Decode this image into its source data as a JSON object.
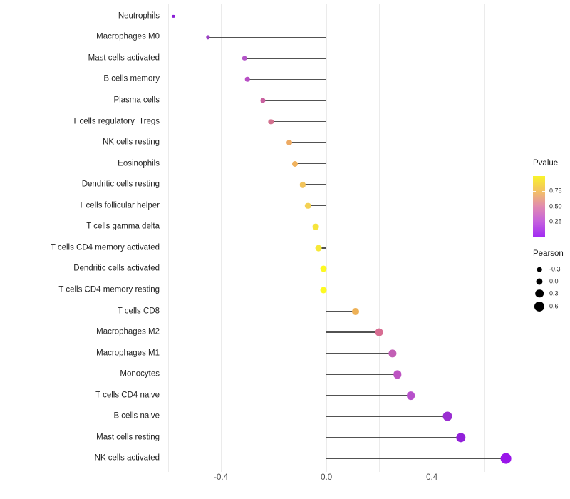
{
  "figure": {
    "background": "#ffffff"
  },
  "chart_data": {
    "type": "lollipop",
    "title": "",
    "xlabel": "",
    "ylabel": "",
    "description": "Horizontal lollipop / Cleveland dot plot of Pearson correlation per immune cell type; dot color encodes Pvalue (plasma-like gradient), dot size encodes Pearson value",
    "xlim": [
      -0.611,
      0.74
    ],
    "x_gridlines": [
      -0.6,
      -0.4,
      -0.2,
      0.0,
      0.2,
      0.4,
      0.6
    ],
    "x_ticks": [
      {
        "value": -0.4,
        "label": "-0.4"
      },
      {
        "value": 0.0,
        "label": "0.0"
      },
      {
        "value": 0.4,
        "label": "0.4"
      }
    ],
    "grid": "vertical-only",
    "legend_position": "right",
    "points": [
      {
        "label": "Neutrophils",
        "pearson": -0.58,
        "pvalue_approx": 0.01,
        "color": "#8B1FD6"
      },
      {
        "label": "Macrophages M0",
        "pearson": -0.45,
        "pvalue_approx": 0.06,
        "color": "#9B3FC4"
      },
      {
        "label": "Mast cells activated",
        "pearson": -0.31,
        "pvalue_approx": 0.15,
        "color": "#B455C8"
      },
      {
        "label": "B cells memory",
        "pearson": -0.3,
        "pvalue_approx": 0.17,
        "color": "#B84FC5"
      },
      {
        "label": "Plasma cells",
        "pearson": -0.24,
        "pvalue_approx": 0.3,
        "color": "#C9609F"
      },
      {
        "label": "T cells regulatory  Tregs",
        "pearson": -0.21,
        "pvalue_approx": 0.37,
        "color": "#D3718F"
      },
      {
        "label": "NK cells resting",
        "pearson": -0.14,
        "pvalue_approx": 0.55,
        "color": "#EDAA63"
      },
      {
        "label": "Eosinophils",
        "pearson": -0.12,
        "pvalue_approx": 0.6,
        "color": "#F0B25E"
      },
      {
        "label": "Dendritic cells resting",
        "pearson": -0.09,
        "pvalue_approx": 0.67,
        "color": "#F2C45C"
      },
      {
        "label": "T cells follicular helper",
        "pearson": -0.07,
        "pvalue_approx": 0.72,
        "color": "#F4D153"
      },
      {
        "label": "T cells gamma delta",
        "pearson": -0.04,
        "pvalue_approx": 0.83,
        "color": "#F6E43C"
      },
      {
        "label": "T cells CD4 memory activated",
        "pearson": -0.03,
        "pvalue_approx": 0.85,
        "color": "#F7E838"
      },
      {
        "label": "Dendritic cells activated",
        "pearson": -0.01,
        "pvalue_approx": 0.95,
        "color": "#FDF921"
      },
      {
        "label": "T cells CD4 memory resting",
        "pearson": -0.01,
        "pvalue_approx": 0.96,
        "color": "#FDFA22"
      },
      {
        "label": "T cells CD8",
        "pearson": 0.11,
        "pvalue_approx": 0.58,
        "color": "#EEB156"
      },
      {
        "label": "Macrophages M2",
        "pearson": 0.2,
        "pvalue_approx": 0.4,
        "color": "#D76D92"
      },
      {
        "label": "Macrophages M1",
        "pearson": 0.25,
        "pvalue_approx": 0.28,
        "color": "#C25FB5"
      },
      {
        "label": "Monocytes",
        "pearson": 0.27,
        "pvalue_approx": 0.22,
        "color": "#BD53C2"
      },
      {
        "label": "T cells CD4 naive",
        "pearson": 0.32,
        "pvalue_approx": 0.16,
        "color": "#B750CB"
      },
      {
        "label": "B cells naive",
        "pearson": 0.46,
        "pvalue_approx": 0.04,
        "color": "#9A2ED1"
      },
      {
        "label": "Mast cells resting",
        "pearson": 0.51,
        "pvalue_approx": 0.02,
        "color": "#9220DA"
      },
      {
        "label": "NK cells activated",
        "pearson": 0.68,
        "pvalue_approx": 0.001,
        "color": "#9A15EA"
      }
    ],
    "legend": {
      "pvalue": {
        "title": "Pvalue",
        "range": [
          0,
          1
        ],
        "ticks": [
          {
            "value": 0.75,
            "label": "0.75"
          },
          {
            "value": 0.5,
            "label": "0.50"
          },
          {
            "value": 0.25,
            "label": "0.25"
          }
        ],
        "gradient_bottom_to_top": [
          "#A22BF2",
          "#C561DD",
          "#E18BB0",
          "#F3C163",
          "#F9F32B"
        ]
      },
      "pearson": {
        "title": "Pearson",
        "dot_color": "#000000",
        "items": [
          {
            "value": -0.3,
            "label": "-0.3"
          },
          {
            "value": 0.0,
            "label": "0.0"
          },
          {
            "value": 0.3,
            "label": "0.3"
          },
          {
            "value": 0.6,
            "label": "0.6"
          }
        ]
      }
    },
    "styles": {
      "stem_color": "#3f3f3f",
      "gridline_color": "#ebebeb",
      "y_axis_text_color": "#1f1f1f",
      "x_axis_text_color": "#4d4d4d"
    }
  }
}
